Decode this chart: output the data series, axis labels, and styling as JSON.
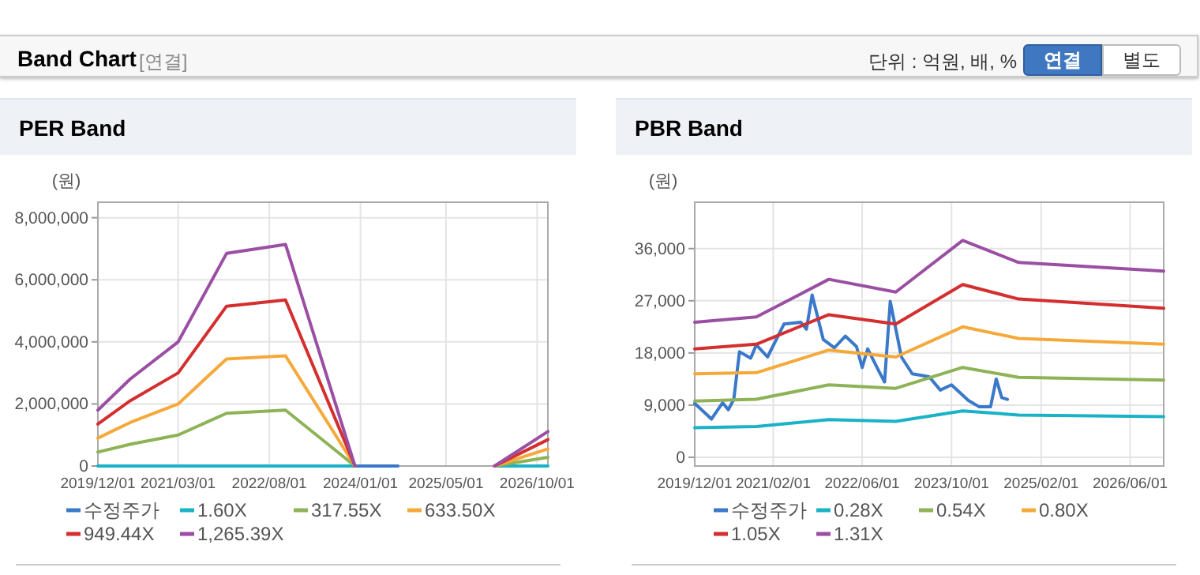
{
  "chart_data": [
    {
      "type": "line",
      "title": "PER Band",
      "ylabel": "(원)",
      "annotations": [
        "Band Chart",
        "[연결]",
        "단위 : 억원, 배, %",
        "연결",
        "별도"
      ],
      "x": [
        "2019-12-01",
        "2020-06-01",
        "2021-03-01",
        "2021-12-01",
        "2022-11-01",
        "2023-12-01",
        "2024-08-01",
        "2026-02-01",
        "2026-12-01"
      ],
      "series": [
        {
          "name": "수정주가",
          "color": "#3a78c9",
          "values": [
            null,
            null,
            null,
            null,
            null,
            0,
            0,
            null,
            null
          ]
        },
        {
          "name": "1.60X",
          "color": "#1ab2c7",
          "values": [
            0,
            0,
            0,
            0,
            0,
            0,
            null,
            0,
            0
          ]
        },
        {
          "name": "317.55X",
          "color": "#8db356",
          "values": [
            450000,
            700000,
            1000000,
            1700000,
            1800000,
            0,
            null,
            0,
            280000
          ]
        },
        {
          "name": "633.50X",
          "color": "#f5a93a",
          "values": [
            900000,
            1400000,
            2000000,
            3450000,
            3550000,
            0,
            null,
            0,
            550000
          ]
        },
        {
          "name": "949.44X",
          "color": "#d42f2f",
          "values": [
            1350000,
            2100000,
            3000000,
            5150000,
            5350000,
            0,
            null,
            0,
            850000
          ]
        },
        {
          "name": "1,265.39X",
          "color": "#9b4fa3",
          "values": [
            1800000,
            2800000,
            4000000,
            6850000,
            7140000,
            0,
            null,
            0,
            1110000
          ]
        }
      ],
      "xlim": [
        "2019-12-01",
        "2026-12-01"
      ],
      "xticks": [
        {
          "value": "2019-12-01",
          "label": "2019/12/01"
        },
        {
          "value": "2021-03-01",
          "label": "2021/03/01"
        },
        {
          "value": "2022-08-01",
          "label": "2022/08/01"
        },
        {
          "value": "2024-01-01",
          "label": "2024/01/01"
        },
        {
          "value": "2025-05-01",
          "label": "2025/05/01"
        },
        {
          "value": "2026-10-01",
          "label": "2026/10/01"
        }
      ],
      "ylim": [
        0,
        8500000
      ],
      "yticks": [
        {
          "value": 0,
          "label": "0"
        },
        {
          "value": 2000000,
          "label": "2,000,000"
        },
        {
          "value": 4000000,
          "label": "4,000,000"
        },
        {
          "value": 6000000,
          "label": "6,000,000"
        },
        {
          "value": 8000000,
          "label": "8,000,000"
        }
      ],
      "grid": true,
      "legend": "bottom"
    },
    {
      "type": "line",
      "title": "PBR Band",
      "ylabel": "(원)",
      "x": [
        "2019-12-01",
        "2020-11-01",
        "2021-12-01",
        "2022-12-01",
        "2023-12-01",
        "2024-10-01",
        "2026-12-01"
      ],
      "series": [
        {
          "name": "수정주가",
          "color": "#3a78c9",
          "x": [
            "2019-12-01",
            "2020-03-01",
            "2020-05-01",
            "2020-06-01",
            "2020-07-01",
            "2020-08-01",
            "2020-10-01",
            "2020-11-01",
            "2021-01-01",
            "2021-04-01",
            "2021-07-01",
            "2021-08-01",
            "2021-09-01",
            "2021-11-01",
            "2022-01-01",
            "2022-03-01",
            "2022-05-01",
            "2022-06-01",
            "2022-07-01",
            "2022-09-01",
            "2022-10-01",
            "2022-11-01",
            "2023-01-01",
            "2023-03-01",
            "2023-06-01",
            "2023-08-01",
            "2023-10-01",
            "2024-01-01",
            "2024-03-01",
            "2024-05-01",
            "2024-06-01",
            "2024-07-01",
            "2024-08-01"
          ],
          "values": [
            9300,
            6600,
            9400,
            8200,
            10000,
            18200,
            17100,
            19400,
            17300,
            23000,
            23300,
            22100,
            28000,
            20300,
            18900,
            20900,
            19100,
            15500,
            18700,
            14800,
            13000,
            26900,
            17300,
            14400,
            13900,
            11600,
            12500,
            9800,
            8700,
            8700,
            13500,
            10300,
            10000
          ]
        },
        {
          "name": "0.28X",
          "color": "#1ab2c7",
          "values": [
            5100,
            5300,
            6500,
            6200,
            8000,
            7300,
            7000
          ]
        },
        {
          "name": "0.54X",
          "color": "#8db356",
          "values": [
            9700,
            10000,
            12500,
            11900,
            15500,
            13800,
            13300
          ]
        },
        {
          "name": "0.80X",
          "color": "#f5a93a",
          "values": [
            14400,
            14600,
            18500,
            17300,
            22500,
            20500,
            19500
          ]
        },
        {
          "name": "1.05X",
          "color": "#d42f2f",
          "values": [
            18700,
            19500,
            24600,
            23000,
            29800,
            27300,
            25700
          ]
        },
        {
          "name": "1.31X",
          "color": "#9b4fa3",
          "values": [
            23300,
            24200,
            30700,
            28500,
            37400,
            33600,
            32100
          ]
        }
      ],
      "xlim": [
        "2019-12-01",
        "2026-12-01"
      ],
      "xticks": [
        {
          "value": "2019-12-01",
          "label": "2019/12/01"
        },
        {
          "value": "2021-02-01",
          "label": "2021/02/01"
        },
        {
          "value": "2022-06-01",
          "label": "2022/06/01"
        },
        {
          "value": "2023-10-01",
          "label": "2023/10/01"
        },
        {
          "value": "2025-02-01",
          "label": "2025/02/01"
        },
        {
          "value": "2026-06-01",
          "label": "2026/06/01"
        }
      ],
      "ylim": [
        -1500,
        44000
      ],
      "yticks": [
        {
          "value": 0,
          "label": "0"
        },
        {
          "value": 9000,
          "label": "9,000"
        },
        {
          "value": 18000,
          "label": "18,000"
        },
        {
          "value": 27000,
          "label": "27,000"
        },
        {
          "value": 36000,
          "label": "36,000"
        }
      ],
      "grid": true,
      "legend": "bottom"
    }
  ]
}
